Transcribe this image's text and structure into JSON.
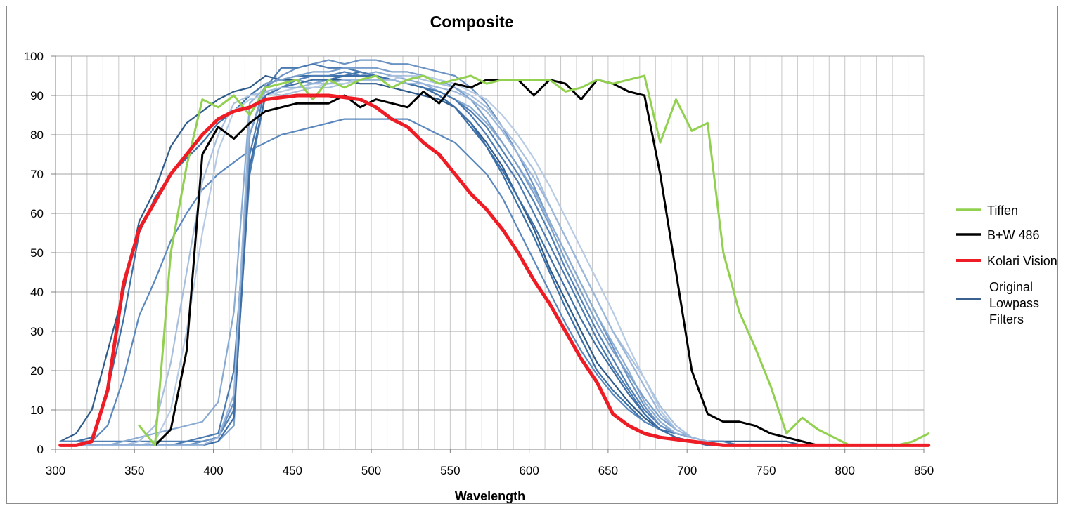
{
  "chart_data": {
    "type": "line",
    "title": "Composite",
    "xlabel": "Wavelength",
    "ylabel": "",
    "xlim": [
      300,
      850
    ],
    "ylim": [
      0,
      100
    ],
    "x_ticks": [
      300,
      350,
      400,
      450,
      500,
      550,
      600,
      650,
      700,
      750,
      800,
      850
    ],
    "y_ticks": [
      0,
      10,
      20,
      30,
      40,
      50,
      60,
      70,
      80,
      90,
      100
    ],
    "grid": true,
    "legend_position": "right",
    "legend": [
      {
        "label": "Tiffen",
        "color": "#92d050"
      },
      {
        "label": "B+W 486",
        "color": "#000000"
      },
      {
        "label": "Kolari Vision",
        "color": "#ee1c25"
      },
      {
        "label": "Original Lowpass Filters",
        "label_lines": [
          "Original",
          "Lowpass",
          "Filters"
        ],
        "color": "#3a6190"
      }
    ],
    "x": [
      303,
      313,
      323,
      333,
      343,
      353,
      363,
      373,
      383,
      393,
      403,
      413,
      423,
      433,
      443,
      453,
      463,
      473,
      483,
      493,
      503,
      513,
      523,
      533,
      543,
      553,
      563,
      573,
      583,
      593,
      603,
      613,
      623,
      633,
      643,
      653,
      663,
      673,
      683,
      693,
      703,
      713,
      723,
      733,
      743,
      753,
      763,
      773,
      783,
      793,
      803,
      813,
      823,
      833,
      843,
      853
    ],
    "series": [
      {
        "name": "Tiffen",
        "color": "#92d050",
        "width": 3,
        "values": [
          null,
          null,
          null,
          null,
          null,
          6,
          1,
          50,
          72,
          89,
          87,
          90,
          85,
          92,
          93,
          94,
          89,
          94,
          92,
          94,
          95,
          92,
          94,
          95,
          93,
          94,
          95,
          93,
          94,
          94,
          94,
          94,
          91,
          92,
          94,
          93,
          94,
          95,
          78,
          89,
          81,
          83,
          50,
          35,
          26,
          16,
          4,
          8,
          5,
          3,
          1,
          1,
          1,
          1,
          2,
          4
        ]
      },
      {
        "name": "B+W 486",
        "color": "#000000",
        "width": 3,
        "values": [
          null,
          null,
          null,
          null,
          null,
          null,
          1,
          5,
          25,
          75,
          82,
          79,
          83,
          86,
          87,
          88,
          88,
          88,
          90,
          87,
          89,
          88,
          87,
          91,
          88,
          93,
          92,
          94,
          94,
          94,
          90,
          94,
          93,
          89,
          94,
          93,
          91,
          90,
          70,
          45,
          20,
          9,
          7,
          7,
          6,
          4,
          3,
          2,
          1,
          1,
          1,
          1,
          1,
          1,
          1,
          1
        ]
      },
      {
        "name": "Kolari Vision",
        "color": "#ee1c25",
        "width": 5,
        "values": [
          1,
          1,
          2,
          15,
          42,
          56,
          63,
          70,
          75,
          80,
          84,
          86,
          87,
          89,
          89.5,
          90,
          90,
          90,
          89.5,
          89,
          87,
          84,
          82,
          78,
          75,
          70,
          65,
          61,
          56,
          50,
          43,
          37,
          30,
          23,
          17,
          9,
          6,
          4,
          3,
          2.5,
          2,
          1.5,
          1,
          1,
          1,
          1,
          1,
          1,
          1,
          1,
          1,
          1,
          1,
          1,
          1,
          1
        ]
      },
      {
        "name": "",
        "color": "#2e5b8a",
        "width": 2.2,
        "values": [
          2,
          4,
          10,
          25,
          40,
          58,
          66,
          77,
          83,
          86,
          89,
          91,
          92,
          95,
          94,
          94,
          93,
          94,
          94,
          93,
          93,
          92,
          91,
          90,
          89,
          87,
          83,
          78,
          72,
          64,
          56,
          46,
          38,
          30,
          22,
          17,
          12,
          8,
          5,
          4,
          3,
          2,
          2,
          2,
          2,
          2,
          2,
          1,
          1,
          1,
          1,
          1,
          1,
          1,
          1,
          1
        ]
      },
      {
        "name": "",
        "color": "#3a6fa8",
        "width": 2.2,
        "values": [
          2,
          2,
          3,
          15,
          33,
          55,
          64,
          70,
          74,
          78,
          83,
          86,
          90,
          93,
          94,
          95,
          95,
          95,
          95,
          96,
          95,
          94,
          93,
          92,
          90,
          87,
          82,
          77,
          70,
          62,
          54,
          45,
          36,
          28,
          20,
          15,
          11,
          7,
          5,
          4,
          3,
          2,
          2,
          1,
          1,
          1,
          1,
          1,
          1,
          1,
          1,
          1,
          1,
          1,
          1,
          1
        ]
      },
      {
        "name": "",
        "color": "#4f7fb4",
        "width": 2.2,
        "values": [
          2,
          2,
          2,
          2,
          2,
          2,
          2,
          2,
          2,
          2,
          3,
          10,
          70,
          90,
          92,
          94,
          95,
          95,
          96,
          95,
          95,
          94,
          93,
          92,
          91,
          89,
          86,
          82,
          76,
          70,
          63,
          55,
          46,
          38,
          30,
          23,
          16,
          10,
          6,
          4,
          3,
          2,
          2,
          1,
          1,
          1,
          1,
          1,
          1,
          1,
          1,
          1,
          1,
          1,
          1,
          1
        ]
      },
      {
        "name": "",
        "color": "#5a88be",
        "width": 2.2,
        "values": [
          2,
          2,
          2,
          6,
          18,
          34,
          43,
          53,
          60,
          66,
          70,
          73,
          76,
          78,
          80,
          81,
          82,
          83,
          84,
          84,
          84,
          84,
          84,
          82,
          80,
          78,
          74,
          70,
          64,
          56,
          48,
          40,
          32,
          25,
          19,
          14,
          10,
          7,
          5,
          3,
          2,
          2,
          1,
          1,
          1,
          1,
          1,
          1,
          1,
          1,
          1,
          1,
          1,
          1,
          1,
          1
        ]
      },
      {
        "name": "",
        "color": "#6b93c4",
        "width": 2.2,
        "values": [
          1,
          1,
          1,
          1,
          1,
          1,
          1,
          1,
          1,
          2,
          3,
          12,
          80,
          92,
          95,
          97,
          98,
          99,
          98,
          99,
          99,
          98,
          98,
          97,
          96,
          95,
          92,
          88,
          82,
          75,
          67,
          58,
          50,
          42,
          34,
          26,
          18,
          11,
          6,
          4,
          3,
          2,
          1,
          1,
          1,
          1,
          1,
          1,
          1,
          1,
          1,
          1,
          1,
          1,
          1,
          1
        ]
      },
      {
        "name": "",
        "color": "#8aabd2",
        "width": 2.2,
        "values": [
          1,
          1,
          1,
          1,
          2,
          3,
          4,
          5,
          6,
          7,
          12,
          35,
          88,
          92,
          93,
          94,
          93,
          94,
          95,
          95,
          96,
          95,
          94,
          93,
          91,
          89,
          87,
          83,
          78,
          72,
          66,
          58,
          50,
          42,
          34,
          27,
          20,
          12,
          7,
          4,
          3,
          2,
          1,
          1,
          1,
          1,
          1,
          1,
          1,
          1,
          1,
          1,
          1,
          1,
          1,
          1
        ]
      },
      {
        "name": "",
        "color": "#a8c0de",
        "width": 2.2,
        "values": [
          1,
          1,
          1,
          1,
          1,
          2,
          6,
          22,
          45,
          68,
          80,
          88,
          90,
          91,
          90,
          91,
          92,
          92,
          93,
          94,
          94,
          95,
          95,
          94,
          93,
          92,
          90,
          87,
          82,
          77,
          71,
          62,
          54,
          46,
          38,
          30,
          24,
          18,
          11,
          6,
          3,
          2,
          1,
          1,
          1,
          1,
          1,
          1,
          1,
          1,
          1,
          1,
          1,
          1,
          1,
          1
        ]
      },
      {
        "name": "",
        "color": "#4a7ab0",
        "width": 2.2,
        "values": [
          1,
          1,
          1,
          1,
          1,
          1,
          1,
          1,
          2,
          3,
          4,
          20,
          75,
          92,
          97,
          97,
          98,
          97,
          97,
          96,
          95,
          94,
          93,
          92,
          91,
          89,
          85,
          80,
          74,
          68,
          60,
          52,
          44,
          36,
          28,
          21,
          15,
          9,
          5,
          3,
          2,
          1,
          1,
          1,
          1,
          1,
          1,
          1,
          1,
          1,
          1,
          1,
          1,
          1,
          1,
          1
        ]
      },
      {
        "name": "",
        "color": "#7a9fcb",
        "width": 2.2,
        "values": [
          1,
          1,
          1,
          1,
          1,
          1,
          1,
          1,
          1,
          1,
          2,
          6,
          80,
          93,
          94,
          95,
          96,
          96,
          97,
          97,
          97,
          96,
          96,
          95,
          94,
          92,
          89,
          84,
          78,
          72,
          65,
          57,
          48,
          40,
          32,
          25,
          19,
          13,
          8,
          5,
          3,
          2,
          1,
          1,
          1,
          1,
          1,
          1,
          1,
          1,
          1,
          1,
          1,
          1,
          1,
          1
        ]
      },
      {
        "name": "",
        "color": "#b7cbe4",
        "width": 2.2,
        "values": [
          1,
          1,
          1,
          1,
          1,
          1,
          2,
          10,
          30,
          55,
          76,
          86,
          89,
          90,
          91,
          92,
          92,
          93,
          93,
          94,
          94,
          94,
          95,
          95,
          94,
          93,
          91,
          89,
          85,
          80,
          74,
          67,
          59,
          51,
          43,
          35,
          26,
          18,
          10,
          5,
          3,
          2,
          1,
          1,
          1,
          1,
          1,
          1,
          1,
          1,
          1,
          1,
          1,
          1,
          1,
          1
        ]
      },
      {
        "name": "",
        "color": "#3d6ea5",
        "width": 2.2,
        "values": [
          1,
          1,
          1,
          1,
          1,
          1,
          1,
          1,
          1,
          1,
          2,
          8,
          72,
          90,
          92,
          93,
          94,
          94,
          95,
          95,
          95,
          94,
          93,
          92,
          90,
          87,
          83,
          77,
          71,
          64,
          57,
          49,
          41,
          33,
          26,
          20,
          14,
          9,
          5,
          3,
          2,
          1,
          1,
          1,
          1,
          1,
          1,
          1,
          1,
          1,
          1,
          1,
          1,
          1,
          1,
          1
        ]
      },
      {
        "name": "",
        "color": "#9ab6da",
        "width": 2.2,
        "values": [
          1,
          1,
          1,
          1,
          1,
          1,
          1,
          1,
          1,
          1,
          3,
          14,
          85,
          91,
          92,
          92,
          93,
          93,
          94,
          94,
          94,
          94,
          93,
          93,
          92,
          91,
          89,
          86,
          81,
          75,
          69,
          62,
          54,
          46,
          38,
          30,
          23,
          16,
          9,
          5,
          3,
          2,
          1,
          1,
          1,
          1,
          1,
          1,
          1,
          1,
          1,
          1,
          1,
          1,
          1,
          1
        ]
      }
    ]
  }
}
